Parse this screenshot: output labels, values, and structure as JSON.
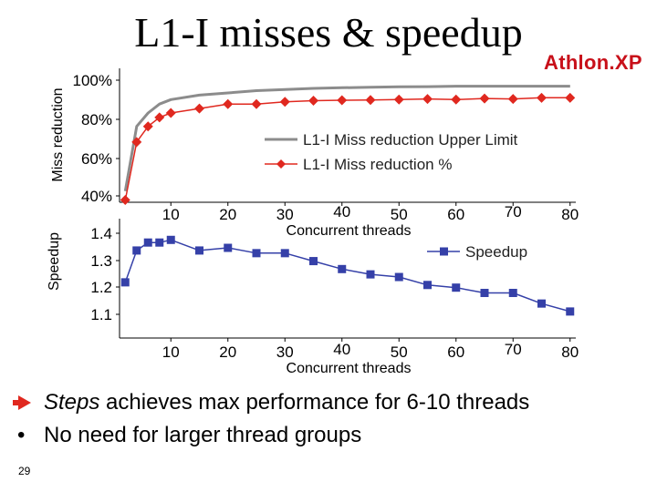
{
  "slide": {
    "title": "L1-I misses & speedup",
    "badge": "Athlon.XP",
    "page_number": "29",
    "bullets": [
      {
        "emphasis": "Steps",
        "text": " achieves max performance for 6-10 threads"
      },
      {
        "emphasis": "",
        "text": "No need for larger thread groups"
      }
    ],
    "colors": {
      "upper_limit": "#8c8c8c",
      "miss_reduction": "#e0281f",
      "speedup": "#3540a8",
      "badge": "#c8101a"
    }
  },
  "chart_data": [
    {
      "type": "line",
      "ylabel": "Miss reduction",
      "xlabel": "Concurrent threads",
      "x_ticks": [
        "10",
        "20",
        "30",
        "40",
        "50",
        "60",
        "70",
        "80"
      ],
      "y_ticks": [
        "100%",
        "80%",
        "60%",
        "40%"
      ],
      "xlim": [
        1,
        81
      ],
      "ylim": [
        40,
        100
      ],
      "legend_position": "center-right",
      "series": [
        {
          "name": "L1-I Miss reduction Upper Limit",
          "color": "#8c8c8c",
          "marker": "none",
          "x": [
            2,
            4,
            6,
            8,
            10,
            15,
            20,
            25,
            30,
            35,
            40,
            45,
            50,
            55,
            60,
            65,
            70,
            75,
            80
          ],
          "y": [
            45,
            74,
            80,
            84,
            86,
            88,
            89,
            90,
            90.5,
            91,
            91.3,
            91.5,
            91.7,
            91.8,
            92,
            92,
            92,
            92,
            92
          ]
        },
        {
          "name": "L1-I Miss reduction %",
          "color": "#e0281f",
          "marker": "diamond",
          "x": [
            2,
            4,
            6,
            8,
            10,
            15,
            20,
            25,
            30,
            35,
            40,
            45,
            50,
            55,
            60,
            65,
            70,
            75,
            80
          ],
          "y": [
            41,
            67,
            74,
            78,
            80,
            82,
            84,
            84,
            85,
            85.5,
            85.7,
            85.8,
            86,
            86.3,
            86,
            86.5,
            86.3,
            86.8,
            86.8
          ]
        }
      ]
    },
    {
      "type": "line",
      "ylabel": "Speedup",
      "xlabel": "Concurrent threads",
      "x_ticks": [
        "10",
        "20",
        "30",
        "40",
        "50",
        "60",
        "70",
        "80"
      ],
      "y_ticks": [
        "1.4",
        "1.3",
        "1.2",
        "1.1"
      ],
      "xlim": [
        1,
        81
      ],
      "ylim": [
        1.0,
        1.45
      ],
      "legend_position": "top-right",
      "series": [
        {
          "name": "Speedup",
          "color": "#3540a8",
          "marker": "square",
          "x": [
            2,
            4,
            6,
            8,
            10,
            15,
            20,
            25,
            30,
            35,
            40,
            45,
            50,
            55,
            60,
            65,
            70,
            75,
            80
          ],
          "y": [
            1.21,
            1.33,
            1.36,
            1.36,
            1.37,
            1.33,
            1.34,
            1.32,
            1.32,
            1.29,
            1.26,
            1.24,
            1.23,
            1.2,
            1.19,
            1.17,
            1.17,
            1.13,
            1.1
          ]
        }
      ]
    }
  ]
}
